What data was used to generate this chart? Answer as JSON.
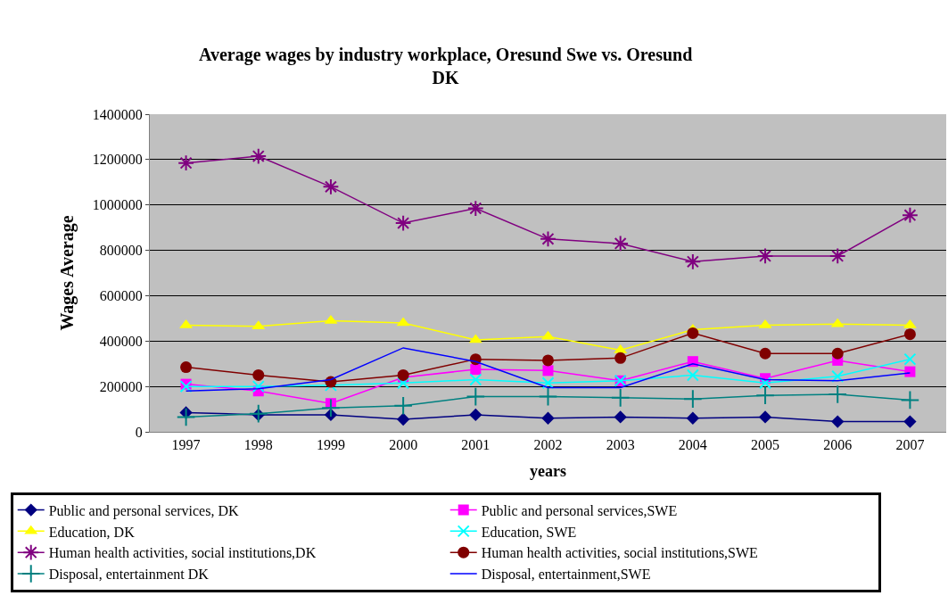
{
  "chart_data": {
    "type": "line",
    "title": "Average wages by industry workplace, Oresund Swe vs. Oresund DK",
    "xlabel": "years",
    "ylabel": "Wages Average",
    "categories": [
      "1997",
      "1998",
      "1999",
      "2000",
      "2001",
      "2002",
      "2003",
      "2004",
      "2005",
      "2006",
      "2007"
    ],
    "ylim": [
      0,
      1400000
    ],
    "yticks": [
      0,
      200000,
      400000,
      600000,
      800000,
      1000000,
      1200000,
      1400000
    ],
    "grid": "y",
    "legend": "bottom",
    "series": [
      {
        "name": "Public and personal services, DK",
        "color": "#000080",
        "marker": "diamond",
        "values": [
          85000,
          75000,
          75000,
          55000,
          75000,
          60000,
          65000,
          60000,
          65000,
          45000,
          45000
        ]
      },
      {
        "name": "Public and personal services,SWE",
        "color": "#ff00ff",
        "marker": "square",
        "values": [
          210000,
          180000,
          125000,
          240000,
          275000,
          270000,
          225000,
          310000,
          235000,
          315000,
          265000
        ]
      },
      {
        "name": "Education, DK",
        "color": "#ffff00",
        "marker": "triangle",
        "values": [
          470000,
          465000,
          490000,
          480000,
          405000,
          420000,
          360000,
          450000,
          470000,
          475000,
          470000
        ]
      },
      {
        "name": "Education, SWE",
        "color": "#00ffff",
        "marker": "x",
        "values": [
          200000,
          200000,
          205000,
          215000,
          230000,
          215000,
          225000,
          250000,
          215000,
          245000,
          320000
        ]
      },
      {
        "name": "Human health activities, social institutions,DK",
        "color": "#800080",
        "marker": "cross",
        "values": [
          1185000,
          1215000,
          1080000,
          920000,
          985000,
          850000,
          830000,
          750000,
          775000,
          775000,
          955000
        ]
      },
      {
        "name": "Human health activities, social institutions,SWE",
        "color": "#800000",
        "marker": "circle",
        "values": [
          285000,
          250000,
          220000,
          250000,
          320000,
          315000,
          325000,
          435000,
          345000,
          345000,
          430000
        ]
      },
      {
        "name": "Disposal, entertainment DK",
        "color": "#008080",
        "marker": "cross",
        "values": [
          65000,
          80000,
          105000,
          115000,
          155000,
          155000,
          150000,
          145000,
          160000,
          165000,
          140000
        ]
      },
      {
        "name": "Disposal, entertainment,SWE",
        "color": "#0000ff",
        "marker": "none",
        "values": [
          180000,
          190000,
          230000,
          370000,
          310000,
          195000,
          195000,
          300000,
          230000,
          225000,
          260000
        ]
      }
    ]
  }
}
